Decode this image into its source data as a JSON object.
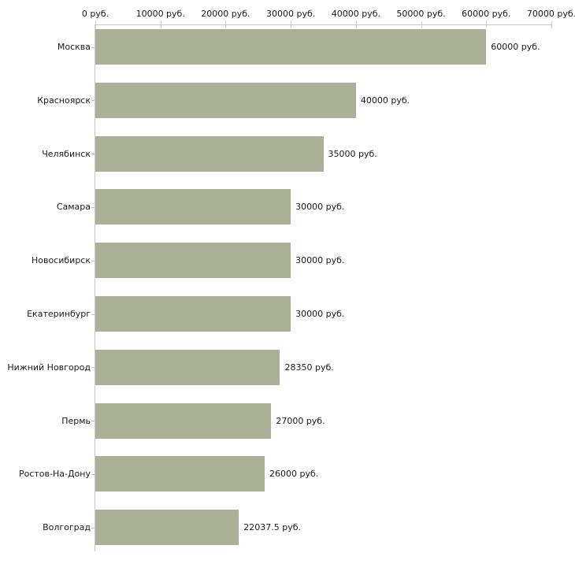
{
  "chart_data": {
    "type": "bar",
    "orientation": "horizontal",
    "title": "",
    "xlabel": "",
    "ylabel": "",
    "unit": "руб.",
    "xlim": [
      0,
      70000
    ],
    "grid": false,
    "legend": false,
    "x_ticks": [
      {
        "value": 0,
        "label": "0 руб."
      },
      {
        "value": 10000,
        "label": "10000 руб."
      },
      {
        "value": 20000,
        "label": "20000 руб."
      },
      {
        "value": 30000,
        "label": "30000 руб."
      },
      {
        "value": 40000,
        "label": "40000 руб."
      },
      {
        "value": 50000,
        "label": "50000 руб."
      },
      {
        "value": 60000,
        "label": "60000 руб."
      },
      {
        "value": 70000,
        "label": "70000 руб."
      }
    ],
    "categories": [
      "Москва",
      "Красноярск",
      "Челябинск",
      "Самара",
      "Новосибирск",
      "Екатеринбург",
      "Нижний Новгород",
      "Пермь",
      "Ростов-На-Дону",
      "Волгоград"
    ],
    "values": [
      60000,
      40000,
      35000,
      30000,
      30000,
      30000,
      28350,
      27000,
      26000,
      22037.5
    ],
    "value_labels": [
      "60000 руб.",
      "40000 руб.",
      "35000 руб.",
      "30000 руб.",
      "30000 руб.",
      "30000 руб.",
      "28350 руб.",
      "27000 руб.",
      "26000 руб.",
      "22037.5 руб."
    ],
    "colors": {
      "bar": "#abb197",
      "axis": "#c8c8c8",
      "x_tick": "#d4d6aa",
      "y_tick": "#bdbdbd",
      "text": "#1a1a1a",
      "background": "#ffffff"
    }
  }
}
